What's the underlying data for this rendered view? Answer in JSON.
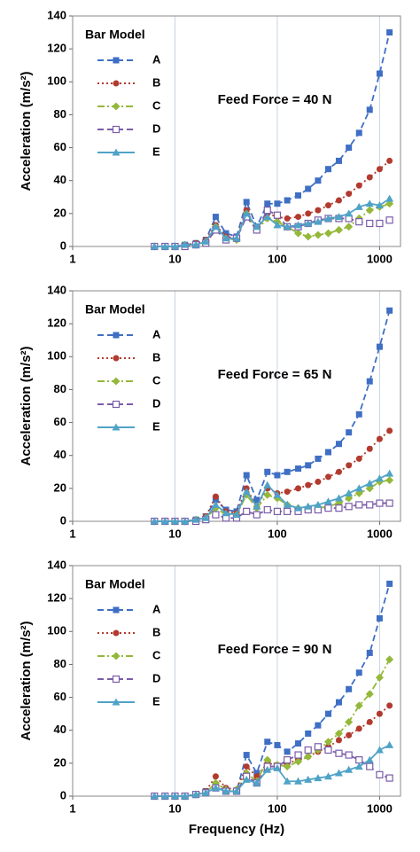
{
  "chart_data": [
    {
      "type": "line",
      "legend_title": "Bar Model",
      "annotation": "Feed Force = 40 N",
      "ylabel": "Acceleration (m/s²)",
      "xscale": "log",
      "xlim": [
        1,
        1600
      ],
      "xticks": [
        1,
        10,
        100,
        1000
      ],
      "xgrid": true,
      "ylim": [
        0,
        140
      ],
      "yticks": [
        0,
        20,
        40,
        60,
        80,
        100,
        120,
        140
      ],
      "x": [
        6.3,
        8,
        10,
        12.5,
        16,
        20,
        25,
        31.5,
        40,
        50,
        63,
        80,
        100,
        125,
        160,
        200,
        250,
        315,
        400,
        500,
        630,
        800,
        1000,
        1250
      ],
      "series": [
        {
          "name": "A",
          "color": "#3f6fc4",
          "marker": "square",
          "dash": "dashed",
          "values": [
            0,
            0,
            0,
            1,
            2,
            4,
            18,
            8,
            6,
            27,
            12,
            26,
            26,
            28,
            31,
            35,
            40,
            47,
            52,
            60,
            69,
            83,
            105,
            130
          ]
        },
        {
          "name": "B",
          "color": "#b23a2e",
          "marker": "circle",
          "dash": "dotted",
          "values": [
            0,
            0,
            0,
            1,
            2,
            4,
            13,
            6,
            5,
            22,
            10,
            20,
            18,
            17,
            18,
            20,
            22,
            25,
            28,
            32,
            37,
            42,
            47,
            52
          ]
        },
        {
          "name": "C",
          "color": "#94b83a",
          "marker": "diamond",
          "dash": "dashdot",
          "values": [
            0,
            0,
            0,
            1,
            1,
            3,
            12,
            5,
            4,
            20,
            10,
            17,
            15,
            12,
            8,
            6,
            7,
            8,
            10,
            12,
            17,
            22,
            24,
            26
          ]
        },
        {
          "name": "D",
          "color": "#7a5ca8",
          "marker": "open-square",
          "dash": "dashed",
          "values": [
            0,
            0,
            0,
            0,
            1,
            2,
            10,
            4,
            5,
            18,
            10,
            22,
            19,
            12,
            12,
            14,
            16,
            17,
            17,
            17,
            15,
            14,
            14,
            16
          ]
        },
        {
          "name": "E",
          "color": "#4fa3c6",
          "marker": "triangle",
          "dash": "solid",
          "values": [
            0,
            0,
            0,
            1,
            1,
            3,
            12,
            5,
            5,
            20,
            12,
            18,
            13,
            12,
            13,
            14,
            15,
            17,
            18,
            20,
            24,
            26,
            25,
            29
          ]
        }
      ]
    },
    {
      "type": "line",
      "legend_title": "Bar Model",
      "annotation": "Feed Force = 65 N",
      "ylabel": "Acceleration (m/s²)",
      "xscale": "log",
      "xlim": [
        1,
        1600
      ],
      "xticks": [
        1,
        10,
        100,
        1000
      ],
      "xgrid": true,
      "ylim": [
        0,
        140
      ],
      "yticks": [
        0,
        20,
        40,
        60,
        80,
        100,
        120,
        140
      ],
      "x": [
        6.3,
        8,
        10,
        12.5,
        16,
        20,
        25,
        31.5,
        40,
        50,
        63,
        80,
        100,
        125,
        160,
        200,
        250,
        315,
        400,
        500,
        630,
        800,
        1000,
        1250
      ],
      "series": [
        {
          "name": "A",
          "color": "#3f6fc4",
          "marker": "square",
          "dash": "dashed",
          "values": [
            0,
            0,
            0,
            0,
            1,
            3,
            13,
            7,
            6,
            28,
            13,
            30,
            28,
            30,
            32,
            34,
            38,
            42,
            47,
            54,
            65,
            85,
            106,
            128
          ]
        },
        {
          "name": "B",
          "color": "#b23a2e",
          "marker": "circle",
          "dash": "dotted",
          "values": [
            0,
            0,
            0,
            0,
            1,
            3,
            15,
            6,
            5,
            20,
            9,
            20,
            17,
            18,
            20,
            22,
            24,
            27,
            30,
            34,
            38,
            44,
            50,
            55
          ]
        },
        {
          "name": "C",
          "color": "#94b83a",
          "marker": "diamond",
          "dash": "dashdot",
          "values": [
            0,
            0,
            0,
            0,
            1,
            2,
            8,
            4,
            4,
            16,
            8,
            16,
            14,
            10,
            8,
            7,
            8,
            9,
            11,
            14,
            17,
            20,
            24,
            25
          ]
        },
        {
          "name": "D",
          "color": "#7a5ca8",
          "marker": "open-square",
          "dash": "dashed",
          "values": [
            0,
            0,
            0,
            0,
            0,
            1,
            4,
            2,
            2,
            6,
            4,
            7,
            6,
            6,
            6,
            7,
            7,
            8,
            8,
            9,
            10,
            10,
            11,
            11
          ]
        },
        {
          "name": "E",
          "color": "#4fa3c6",
          "marker": "triangle",
          "dash": "solid",
          "values": [
            0,
            0,
            0,
            0,
            1,
            2,
            10,
            5,
            4,
            18,
            9,
            22,
            16,
            10,
            8,
            9,
            10,
            12,
            14,
            17,
            20,
            23,
            26,
            29
          ]
        }
      ]
    },
    {
      "type": "line",
      "legend_title": "Bar Model",
      "annotation": "Feed Force = 90 N",
      "ylabel": "Acceleration (m/s²)",
      "xlabel": "Frequency (Hz)",
      "xscale": "log",
      "xlim": [
        1,
        1600
      ],
      "xticks": [
        1,
        10,
        100,
        1000
      ],
      "xgrid": true,
      "ylim": [
        0,
        140
      ],
      "yticks": [
        0,
        20,
        40,
        60,
        80,
        100,
        120,
        140
      ],
      "x": [
        6.3,
        8,
        10,
        12.5,
        16,
        20,
        25,
        31.5,
        40,
        50,
        63,
        80,
        100,
        125,
        160,
        200,
        250,
        315,
        400,
        500,
        630,
        800,
        1000,
        1250
      ],
      "series": [
        {
          "name": "A",
          "color": "#3f6fc4",
          "marker": "square",
          "dash": "dashed",
          "values": [
            0,
            0,
            0,
            0,
            1,
            3,
            6,
            3,
            3,
            25,
            14,
            33,
            31,
            27,
            32,
            38,
            43,
            50,
            57,
            65,
            75,
            87,
            108,
            129
          ]
        },
        {
          "name": "B",
          "color": "#b23a2e",
          "marker": "circle",
          "dash": "dotted",
          "values": [
            0,
            0,
            0,
            0,
            1,
            3,
            12,
            5,
            4,
            18,
            12,
            20,
            19,
            20,
            22,
            24,
            27,
            30,
            34,
            37,
            41,
            45,
            50,
            55
          ]
        },
        {
          "name": "C",
          "color": "#94b83a",
          "marker": "diamond",
          "dash": "dashdot",
          "values": [
            0,
            0,
            0,
            0,
            1,
            2,
            8,
            4,
            4,
            14,
            9,
            22,
            19,
            18,
            21,
            24,
            28,
            33,
            38,
            45,
            55,
            62,
            72,
            83
          ]
        },
        {
          "name": "D",
          "color": "#7a5ca8",
          "marker": "open-square",
          "dash": "dashed",
          "values": [
            0,
            0,
            0,
            0,
            1,
            2,
            5,
            3,
            3,
            12,
            8,
            18,
            18,
            22,
            25,
            28,
            30,
            28,
            26,
            25,
            22,
            18,
            13,
            11
          ]
        },
        {
          "name": "E",
          "color": "#4fa3c6",
          "marker": "triangle",
          "dash": "solid",
          "values": [
            0,
            0,
            0,
            0,
            1,
            2,
            5,
            3,
            3,
            10,
            8,
            16,
            17,
            9,
            9,
            10,
            11,
            12,
            14,
            16,
            18,
            22,
            28,
            31
          ]
        }
      ]
    }
  ]
}
